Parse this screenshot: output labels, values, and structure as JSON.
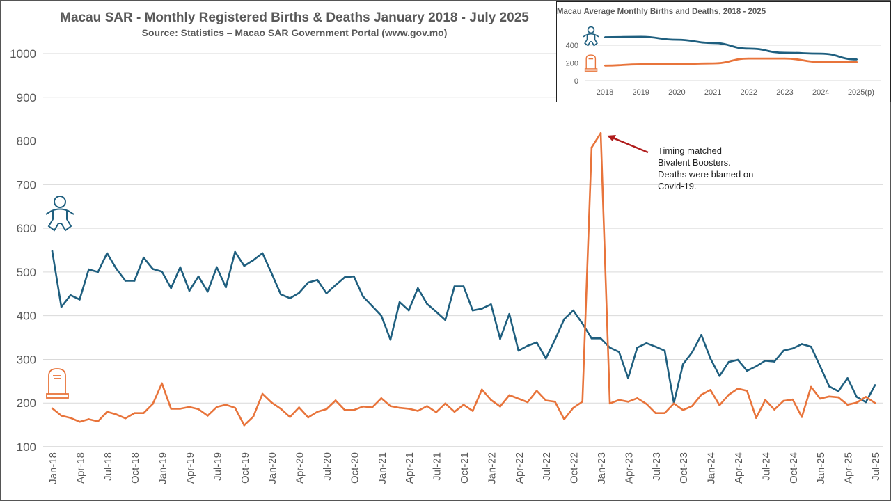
{
  "chart_data": [
    {
      "type": "line",
      "title": "Macau SAR - Monthly Registered Births & Deaths January 2018 - July 2025",
      "subtitle": "Source: Statistics – Macao SAR Government Portal (www.gov.mo)",
      "xlabel": "",
      "ylabel": "",
      "ylim": [
        100,
        1000
      ],
      "yticks": [
        100,
        200,
        300,
        400,
        500,
        600,
        700,
        800,
        900,
        1000
      ],
      "grid": true,
      "x_tick_labels": [
        "Jan-18",
        "Apr-18",
        "Jul-18",
        "Oct-18",
        "Jan-19",
        "Apr-19",
        "Jul-19",
        "Oct-19",
        "Jan-20",
        "Apr-20",
        "Jul-20",
        "Oct-20",
        "Jan-21",
        "Apr-21",
        "Jul-21",
        "Oct-21",
        "Jan-22",
        "Apr-22",
        "Jul-22",
        "Oct-22",
        "Jan-23",
        "Apr-23",
        "Jul-23",
        "Oct-23",
        "Jan-24",
        "Apr-24",
        "Jul-24",
        "Oct-24",
        "Jan-25",
        "Apr-25",
        "Jul-25"
      ],
      "series": [
        {
          "name": "Births",
          "color": "#1f5f7f",
          "icon": "baby-icon",
          "values": [
            548,
            420,
            447,
            437,
            506,
            500,
            543,
            508,
            480,
            480,
            533,
            507,
            501,
            463,
            511,
            457,
            490,
            455,
            511,
            465,
            546,
            514,
            527,
            543,
            497,
            449,
            440,
            452,
            476,
            482,
            451,
            470,
            488,
            490,
            444,
            422,
            400,
            345,
            431,
            412,
            463,
            427,
            409,
            390,
            467,
            467,
            412,
            416,
            426,
            347,
            404,
            320,
            331,
            339,
            302,
            345,
            392,
            412,
            382,
            348,
            348,
            327,
            317,
            257,
            327,
            337,
            329,
            320,
            200,
            289,
            316,
            356,
            302,
            262,
            294,
            299,
            274,
            284,
            297,
            295,
            320,
            325,
            335,
            329,
            284,
            238,
            227,
            257,
            214,
            202,
            241
          ]
        },
        {
          "name": "Deaths",
          "color": "#e8743b",
          "icon": "tombstone-icon",
          "values": [
            188,
            171,
            166,
            157,
            163,
            158,
            180,
            174,
            165,
            177,
            177,
            198,
            245,
            187,
            187,
            191,
            186,
            171,
            191,
            196,
            189,
            149,
            169,
            221,
            201,
            187,
            168,
            190,
            167,
            180,
            186,
            206,
            184,
            184,
            192,
            190,
            211,
            193,
            189,
            187,
            182,
            193,
            179,
            199,
            180,
            196,
            182,
            231,
            207,
            192,
            218,
            210,
            202,
            228,
            206,
            203,
            163,
            189,
            203,
            785,
            818,
            199,
            207,
            203,
            211,
            198,
            177,
            177,
            199,
            184,
            193,
            219,
            230,
            195,
            219,
            233,
            228,
            166,
            207,
            185,
            205,
            208,
            168,
            237,
            210,
            215,
            213,
            196,
            201,
            214,
            200
          ]
        }
      ],
      "annotation": {
        "text": [
          "Timing matched",
          "Bivalent Boosters.",
          "Deaths were blamed on",
          "Covid-19."
        ],
        "points_to": "Jan-23",
        "arrow_color": "#b01c1c"
      }
    },
    {
      "type": "line",
      "title": "Macau Average Monthly Births and Deaths, 2018 - 2025",
      "categories": [
        "2018",
        "2019",
        "2020",
        "2021",
        "2022",
        "2023",
        "2024",
        "2025(p)"
      ],
      "ylim": [
        0,
        500
      ],
      "yticks": [
        0,
        200,
        400
      ],
      "grid": true,
      "series": [
        {
          "name": "Births",
          "color": "#1f5f7f",
          "values": [
            490,
            495,
            462,
            425,
            362,
            315,
            305,
            240
          ]
        },
        {
          "name": "Deaths",
          "color": "#e8743b",
          "values": [
            170,
            185,
            188,
            195,
            250,
            250,
            210,
            210
          ]
        }
      ]
    }
  ]
}
